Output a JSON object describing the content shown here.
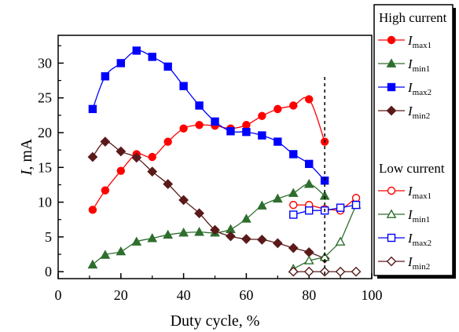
{
  "chart_data": {
    "type": "line",
    "title": "",
    "xlabel": "Duty cycle, %",
    "ylabel_italic": "I",
    "ylabel_rest": ", mA",
    "xlim": [
      0,
      100
    ],
    "ylim": [
      -1,
      34
    ],
    "xticks": [
      0,
      20,
      40,
      60,
      80,
      100
    ],
    "yticks": [
      0,
      5,
      10,
      15,
      20,
      25,
      30
    ],
    "grid": false,
    "legend_placement": "right",
    "vline_x": 85,
    "legend_groups": [
      "High current",
      "Low current"
    ],
    "series": [
      {
        "id": "hi_max1",
        "group": 0,
        "label_main": "I",
        "label_sub": "max1",
        "color": "#ff0000",
        "marker": "circle",
        "filled": true,
        "smooth": true,
        "x": [
          11,
          15,
          20,
          25,
          30,
          35,
          40,
          45,
          50,
          55,
          60,
          65,
          70,
          75,
          80,
          85
        ],
        "y": [
          8.9,
          11.7,
          14.5,
          16.9,
          16.5,
          18.7,
          20.6,
          21.1,
          21.0,
          20.6,
          21.1,
          22.4,
          23.4,
          23.9,
          24.8,
          18.7
        ]
      },
      {
        "id": "hi_min1",
        "group": 0,
        "label_main": "I",
        "label_sub": "min1",
        "color": "#2e6e2e",
        "marker": "triangle",
        "filled": true,
        "smooth": true,
        "x": [
          11,
          15,
          20,
          25,
          30,
          35,
          40,
          45,
          50,
          55,
          60,
          65,
          70,
          75,
          80,
          85
        ],
        "y": [
          1.0,
          2.4,
          2.9,
          4.3,
          4.8,
          5.3,
          5.6,
          5.7,
          5.6,
          6.1,
          7.6,
          9.5,
          10.5,
          11.3,
          12.6,
          10.9
        ]
      },
      {
        "id": "hi_max2",
        "group": 0,
        "label_main": "I",
        "label_sub": "max2",
        "color": "#0000ff",
        "marker": "square",
        "filled": true,
        "smooth": true,
        "x": [
          11,
          15,
          20,
          25,
          30,
          35,
          40,
          45,
          50,
          55,
          60,
          65,
          70,
          75,
          80,
          85
        ],
        "y": [
          23.4,
          28.1,
          30.0,
          31.8,
          30.9,
          29.5,
          26.7,
          23.9,
          21.6,
          20.2,
          20.1,
          19.6,
          18.7,
          16.9,
          15.5,
          13.1
        ]
      },
      {
        "id": "hi_min2",
        "group": 0,
        "label_main": "I",
        "label_sub": "min2",
        "color": "#5a1a1a",
        "marker": "diamond",
        "filled": true,
        "smooth": true,
        "x": [
          11,
          15,
          20,
          25,
          30,
          35,
          40,
          45,
          50,
          55,
          60,
          65,
          70,
          75,
          80,
          85
        ],
        "y": [
          16.5,
          18.7,
          17.3,
          16.4,
          14.4,
          12.6,
          10.3,
          8.4,
          6.0,
          5.1,
          4.7,
          4.6,
          4.1,
          3.4,
          2.8,
          1.9
        ]
      },
      {
        "id": "lo_max1",
        "group": 1,
        "label_main": "I",
        "label_sub": "max1",
        "color": "#ff0000",
        "marker": "circle",
        "filled": false,
        "smooth": false,
        "x": [
          75,
          80,
          85,
          90,
          95
        ],
        "y": [
          9.6,
          9.6,
          9.0,
          8.8,
          10.6
        ]
      },
      {
        "id": "lo_min1",
        "group": 1,
        "label_main": "I",
        "label_sub": "min1",
        "color": "#2e6e2e",
        "marker": "triangle",
        "filled": false,
        "smooth": false,
        "x": [
          75,
          80,
          85,
          90,
          95
        ],
        "y": [
          0.4,
          1.6,
          2.1,
          4.3,
          9.6
        ]
      },
      {
        "id": "lo_max2",
        "group": 1,
        "label_main": "I",
        "label_sub": "max2",
        "color": "#0000ff",
        "marker": "square",
        "filled": false,
        "smooth": false,
        "x": [
          75,
          80,
          85,
          90,
          95
        ],
        "y": [
          8.2,
          8.8,
          8.8,
          9.2,
          9.6
        ]
      },
      {
        "id": "lo_min2",
        "group": 1,
        "label_main": "I",
        "label_sub": "min2",
        "color": "#5a1a1a",
        "marker": "diamond",
        "filled": false,
        "smooth": false,
        "x": [
          75,
          80,
          85,
          90,
          95
        ],
        "y": [
          0.0,
          0.0,
          0.0,
          0.0,
          0.0
        ]
      }
    ]
  }
}
